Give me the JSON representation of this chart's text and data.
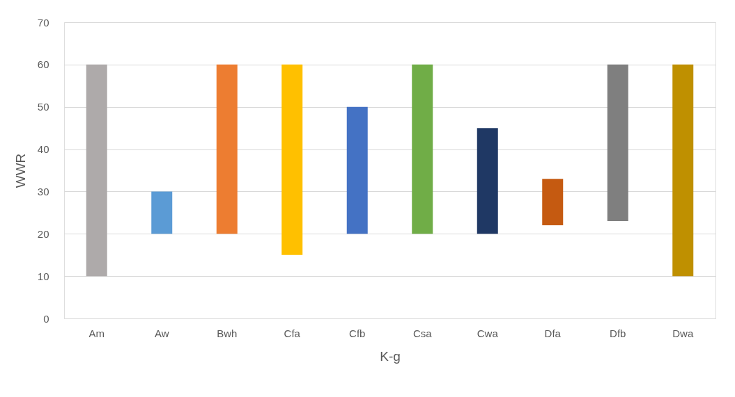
{
  "chart_data": {
    "type": "bar",
    "xlabel": "K-g",
    "ylabel": "WWR",
    "categories": [
      "Am",
      "Aw",
      "Bwh",
      "Cfa",
      "Cfb",
      "Csa",
      "Cwa",
      "Dfa",
      "Dfb",
      "Dwa"
    ],
    "base": [
      10,
      20,
      20,
      15,
      20,
      20,
      20,
      22,
      23,
      10
    ],
    "values": [
      50,
      10,
      40,
      45,
      30,
      40,
      25,
      11,
      37,
      50
    ],
    "colors": [
      "#aeaaaa",
      "#5b9bd5",
      "#ed7d31",
      "#ffc000",
      "#4472c4",
      "#70ad47",
      "#1f3864",
      "#c55a11",
      "#7f7f7f",
      "#bf9000"
    ],
    "ylim": [
      0,
      70
    ],
    "yticks": [
      0,
      10,
      20,
      30,
      40,
      50,
      60,
      70
    ],
    "grid": "y"
  }
}
